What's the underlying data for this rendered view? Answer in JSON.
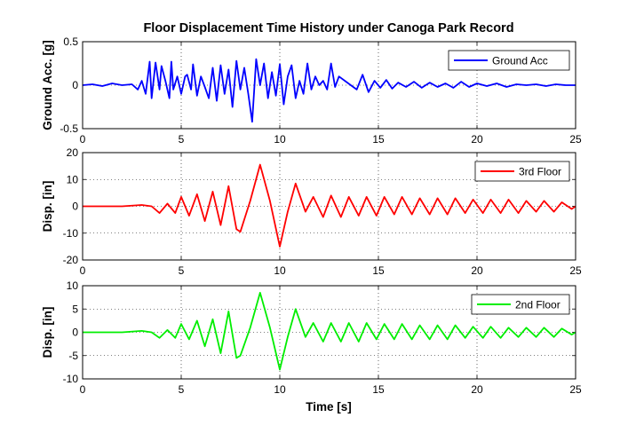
{
  "figure": {
    "title": "Floor Displacement Time History under Canoga Park Record",
    "xlabel": "Time [s]"
  },
  "chart_data": [
    {
      "type": "line",
      "ylabel": "Ground Acc. [g]",
      "xlim": [
        0,
        25
      ],
      "ylim": [
        -0.5,
        0.5
      ],
      "xticks": [
        "0",
        "5",
        "10",
        "15",
        "20",
        "25"
      ],
      "yticks": [
        "-0.5",
        "0",
        "0.5"
      ],
      "ytick_values": [
        -0.5,
        0,
        0.5
      ],
      "grid": true,
      "legend_position": "top-right",
      "series": [
        {
          "name": "Ground Acc",
          "color": "#0000ff",
          "x": [
            0,
            0.5,
            1,
            1.5,
            2,
            2.5,
            2.8,
            3.0,
            3.2,
            3.4,
            3.5,
            3.7,
            3.9,
            4.0,
            4.2,
            4.4,
            4.5,
            4.6,
            4.8,
            5.0,
            5.2,
            5.3,
            5.5,
            5.6,
            5.8,
            6.0,
            6.2,
            6.4,
            6.6,
            6.8,
            7.0,
            7.2,
            7.4,
            7.6,
            7.8,
            8.0,
            8.2,
            8.4,
            8.6,
            8.8,
            9.0,
            9.2,
            9.4,
            9.6,
            9.8,
            10.0,
            10.2,
            10.4,
            10.6,
            10.8,
            11.0,
            11.2,
            11.4,
            11.6,
            11.8,
            12.0,
            12.2,
            12.4,
            12.6,
            12.8,
            13.0,
            13.3,
            13.6,
            13.9,
            14.2,
            14.5,
            14.8,
            15.1,
            15.4,
            15.7,
            16.0,
            16.4,
            16.8,
            17.2,
            17.6,
            18.0,
            18.4,
            18.8,
            19.2,
            19.6,
            20.0,
            20.5,
            21.0,
            21.5,
            22.0,
            22.5,
            23.0,
            23.5,
            24.0,
            24.5,
            25.0
          ],
          "y": [
            0,
            0.01,
            -0.01,
            0.02,
            0,
            0.01,
            -0.05,
            0.05,
            -0.1,
            0.27,
            -0.15,
            0.26,
            -0.05,
            0.22,
            0.05,
            -0.15,
            0.27,
            -0.05,
            0.1,
            -0.1,
            0.1,
            0.12,
            -0.05,
            0.24,
            -0.12,
            0.1,
            -0.02,
            -0.15,
            0.2,
            -0.18,
            0.23,
            -0.1,
            0.18,
            -0.25,
            0.28,
            -0.05,
            0.2,
            -0.1,
            -0.42,
            0.3,
            0.0,
            0.25,
            -0.15,
            0.15,
            -0.12,
            0.24,
            -0.22,
            0.1,
            0.23,
            -0.15,
            0.05,
            -0.1,
            0.25,
            -0.05,
            0.1,
            0.0,
            0.05,
            -0.05,
            0.25,
            -0.02,
            0.1,
            0.05,
            0.0,
            -0.05,
            0.12,
            -0.08,
            0.05,
            -0.03,
            0.06,
            -0.04,
            0.03,
            -0.02,
            0.04,
            -0.03,
            0.03,
            -0.02,
            0.02,
            -0.03,
            0.04,
            -0.02,
            0.02,
            -0.01,
            0.02,
            -0.02,
            0.01,
            0.0,
            0.01,
            -0.01,
            0.01,
            0.0,
            0.0
          ]
        }
      ]
    },
    {
      "type": "line",
      "ylabel": "Disp. [in]",
      "xlim": [
        0,
        25
      ],
      "ylim": [
        -20,
        20
      ],
      "xticks": [
        "0",
        "5",
        "10",
        "15",
        "20",
        "25"
      ],
      "yticks": [
        "-20",
        "-10",
        "0",
        "10",
        "20"
      ],
      "ytick_values": [
        -20,
        -10,
        0,
        10,
        20
      ],
      "grid": true,
      "legend_position": "top-right",
      "series": [
        {
          "name": "3rd Floor",
          "color": "#ff0000",
          "x": [
            0,
            1,
            2,
            3.0,
            3.5,
            3.9,
            4.3,
            4.7,
            5.0,
            5.4,
            5.8,
            6.2,
            6.6,
            7.0,
            7.4,
            7.8,
            8.0,
            8.5,
            9.0,
            9.5,
            10.0,
            10.4,
            10.8,
            11.3,
            11.7,
            12.2,
            12.6,
            13.1,
            13.5,
            14.0,
            14.4,
            14.9,
            15.3,
            15.8,
            16.2,
            16.7,
            17.1,
            17.6,
            18.0,
            18.5,
            18.9,
            19.4,
            19.8,
            20.3,
            20.7,
            21.2,
            21.6,
            22.1,
            22.5,
            23.0,
            23.4,
            23.9,
            24.3,
            24.8,
            25.0
          ],
          "y": [
            0,
            0,
            0,
            0.5,
            0,
            -2.5,
            1,
            -2.5,
            3.5,
            -3.5,
            4.5,
            -5.5,
            5.5,
            -7.0,
            7.5,
            -8.5,
            -9.5,
            2,
            15.5,
            2,
            -15.0,
            -2,
            8.5,
            -2,
            3.5,
            -4.0,
            4.0,
            -4.0,
            3.5,
            -3.5,
            3.5,
            -3.5,
            3.5,
            -3.0,
            3.5,
            -3.0,
            3.0,
            -3.0,
            3.0,
            -3.0,
            3.0,
            -2.5,
            2.5,
            -2.5,
            2.5,
            -2.5,
            2.5,
            -2.5,
            2.0,
            -2.0,
            2.0,
            -2.0,
            1.5,
            -1.0,
            0
          ]
        }
      ]
    },
    {
      "type": "line",
      "ylabel": "Disp. [in]",
      "xlim": [
        0,
        25
      ],
      "ylim": [
        -10,
        10
      ],
      "xticks": [
        "0",
        "5",
        "10",
        "15",
        "20",
        "25"
      ],
      "yticks": [
        "-10",
        "-5",
        "0",
        "5",
        "10"
      ],
      "ytick_values": [
        -10,
        -5,
        0,
        5,
        10
      ],
      "grid": true,
      "legend_position": "top-right",
      "series": [
        {
          "name": "2nd Floor",
          "color": "#00ee00",
          "x": [
            0,
            1,
            2,
            3.0,
            3.5,
            3.9,
            4.3,
            4.7,
            5.0,
            5.4,
            5.8,
            6.2,
            6.6,
            7.0,
            7.4,
            7.8,
            8.0,
            8.5,
            9.0,
            9.5,
            10.0,
            10.4,
            10.8,
            11.3,
            11.7,
            12.2,
            12.6,
            13.1,
            13.5,
            14.0,
            14.4,
            14.9,
            15.3,
            15.8,
            16.2,
            16.7,
            17.1,
            17.6,
            18.0,
            18.5,
            18.9,
            19.4,
            19.8,
            20.3,
            20.7,
            21.2,
            21.6,
            22.1,
            22.5,
            23.0,
            23.4,
            23.9,
            24.3,
            24.8,
            25.0
          ],
          "y": [
            0,
            0,
            0,
            0.3,
            0,
            -1.2,
            0.5,
            -1.2,
            1.8,
            -1.5,
            2.5,
            -3.0,
            2.8,
            -4.5,
            4.5,
            -5.5,
            -5.0,
            1,
            8.5,
            1,
            -8.0,
            -1,
            5.0,
            -1,
            2.0,
            -2.0,
            2.0,
            -2.0,
            2.0,
            -2.0,
            2.0,
            -1.5,
            1.8,
            -1.5,
            1.8,
            -1.5,
            1.5,
            -1.5,
            1.5,
            -1.5,
            1.5,
            -1.2,
            1.2,
            -1.2,
            1.2,
            -1.2,
            1.0,
            -1.0,
            1.0,
            -1.0,
            1.0,
            -1.0,
            0.8,
            -0.5,
            0
          ]
        }
      ]
    }
  ]
}
